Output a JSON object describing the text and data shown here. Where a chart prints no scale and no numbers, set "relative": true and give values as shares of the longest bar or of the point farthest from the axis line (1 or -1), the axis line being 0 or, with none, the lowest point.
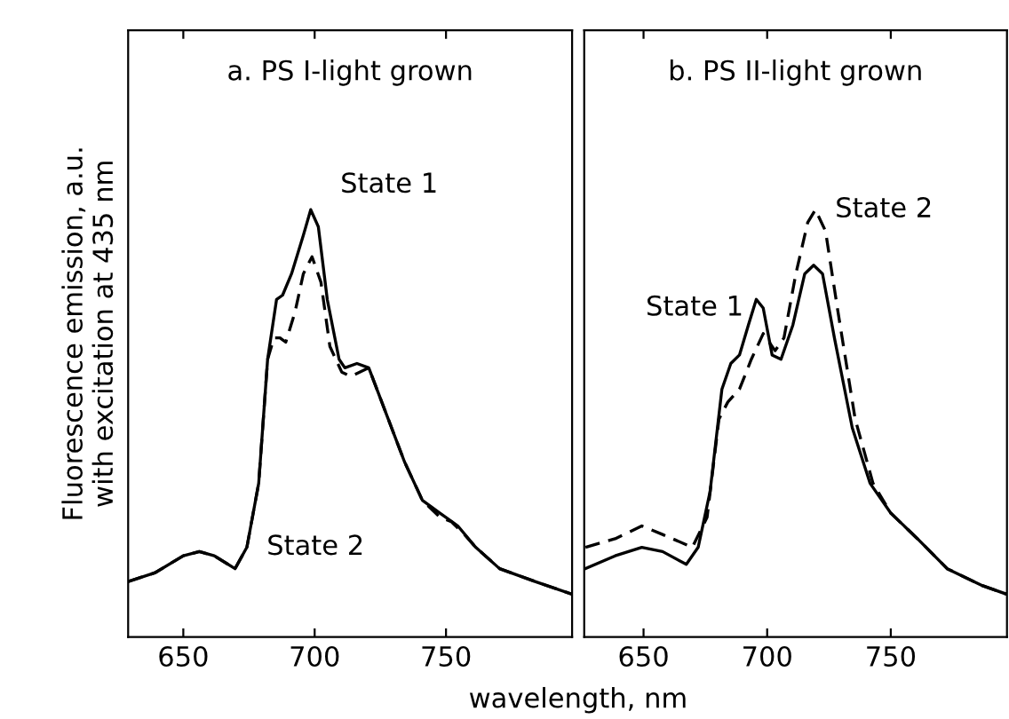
{
  "chart_data": [
    {
      "type": "line",
      "title": "a. PS I-light grown",
      "ylabel": "Fluorescence emission, a.u.\nwith excitation at 435 nm",
      "relative": true,
      "xlim": [
        629,
        798
      ],
      "xticks": [
        650,
        700,
        750
      ],
      "tick_labels": "x",
      "grid": false,
      "legend": false,
      "series": [
        {
          "name": "State 1",
          "color": "#000000",
          "line_style": "solid",
          "x": [
            629,
            639.1,
            650,
            656.1,
            661.8,
            669.7,
            674.2,
            678.7,
            682.1,
            685.5,
            687.8,
            691.2,
            695.7,
            698.5,
            701.4,
            704.8,
            709.3,
            711.5,
            716.1,
            720.6,
            727.4,
            734.2,
            741,
            747.7,
            754.5,
            761.3,
            770.4,
            783.9,
            798
          ],
          "values": [
            0.13,
            0.15,
            0.19,
            0.2,
            0.19,
            0.16,
            0.21,
            0.36,
            0.65,
            0.79,
            0.8,
            0.85,
            0.94,
            1.0,
            0.96,
            0.79,
            0.65,
            0.63,
            0.64,
            0.63,
            0.52,
            0.41,
            0.32,
            0.29,
            0.26,
            0.21,
            0.16,
            0.13,
            0.1
          ]
        },
        {
          "name": "State 2",
          "color": "#000000",
          "line_style": "dashed",
          "x": [
            629,
            639.1,
            650,
            656.1,
            661.8,
            669.7,
            674.2,
            678.7,
            682.1,
            684.5,
            686.8,
            689,
            692.5,
            695.7,
            699,
            702.4,
            705.8,
            710.3,
            713.7,
            720.6,
            727.4,
            734.2,
            741,
            747.7,
            752,
            757,
            761.3,
            770.4,
            783.9,
            798
          ],
          "values": [
            0.13,
            0.15,
            0.19,
            0.2,
            0.19,
            0.16,
            0.21,
            0.36,
            0.65,
            0.7,
            0.7,
            0.69,
            0.76,
            0.85,
            0.89,
            0.83,
            0.68,
            0.62,
            0.61,
            0.63,
            0.52,
            0.41,
            0.32,
            0.28,
            0.27,
            0.24,
            0.21,
            0.16,
            0.13,
            0.1
          ]
        }
      ]
    },
    {
      "type": "line",
      "title": "b. PS II-light grown",
      "xlabel": "wavelength, nm",
      "relative": true,
      "xlim": [
        626,
        797
      ],
      "xticks": [
        650,
        700,
        750
      ],
      "tick_labels": "x",
      "grid": false,
      "legend": false,
      "series": [
        {
          "name": "State 1",
          "color": "#000000",
          "line_style": "solid",
          "x": [
            626.5,
            638.5,
            649.3,
            657.7,
            667.3,
            672.1,
            676.9,
            681.7,
            685.3,
            688.8,
            692.4,
            695.6,
            698.4,
            702,
            705.6,
            710.4,
            715.2,
            718.8,
            722.4,
            727.2,
            734.4,
            741.6,
            750,
            760.8,
            772.8,
            787.2,
            797
          ],
          "values": [
            0.16,
            0.19,
            0.21,
            0.2,
            0.17,
            0.21,
            0.34,
            0.58,
            0.64,
            0.66,
            0.73,
            0.79,
            0.77,
            0.66,
            0.65,
            0.73,
            0.85,
            0.87,
            0.85,
            0.7,
            0.49,
            0.36,
            0.29,
            0.23,
            0.16,
            0.12,
            0.1
          ]
        },
        {
          "name": "State 2",
          "color": "#000000",
          "line_style": "dashed",
          "x": [
            626.5,
            638.5,
            649.3,
            657.7,
            669.7,
            675.7,
            680.5,
            684.1,
            688.8,
            693.6,
            698.4,
            703.2,
            706.8,
            711.6,
            716.4,
            719.5,
            723.6,
            728.4,
            735.6,
            742.8,
            750,
            760.8,
            772.8,
            787.2,
            797
          ],
          "values": [
            0.21,
            0.23,
            0.26,
            0.24,
            0.21,
            0.28,
            0.51,
            0.55,
            0.58,
            0.65,
            0.71,
            0.67,
            0.7,
            0.85,
            0.97,
            1.0,
            0.95,
            0.77,
            0.51,
            0.36,
            0.29,
            0.23,
            0.16,
            0.12,
            0.1
          ]
        }
      ]
    }
  ]
}
